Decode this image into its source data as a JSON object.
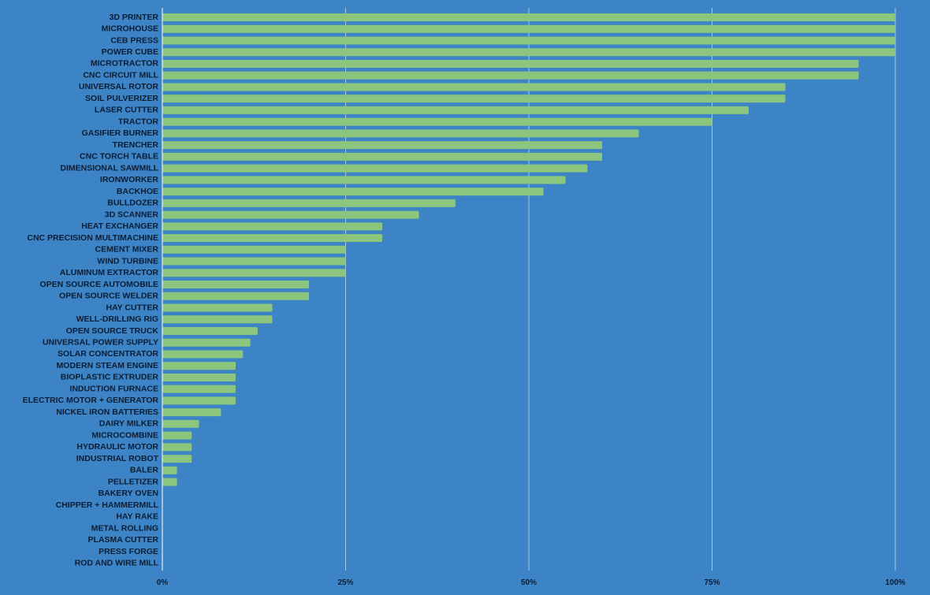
{
  "colors": {
    "background": "#3d84c6",
    "bar": "#8cc57e",
    "grid": "#b9d4ee",
    "text": "#0b1d33"
  },
  "chart_data": {
    "type": "bar",
    "orientation": "horizontal",
    "title": "",
    "xlabel": "",
    "ylabel": "",
    "xlim": [
      0,
      100
    ],
    "x_ticks": [
      "0%",
      "25%",
      "50%",
      "75%",
      "100%"
    ],
    "x_tick_values": [
      0,
      25,
      50,
      75,
      100
    ],
    "grid": true,
    "categories": [
      "3D PRINTER",
      "MICROHOUSE",
      "CEB PRESS",
      "POWER CUBE",
      "MICROTRACTOR",
      "CNC CIRCUIT MILL",
      "UNIVERSAL ROTOR",
      "SOIL PULVERIZER",
      "LASER CUTTER",
      "TRACTOR",
      "GASIFIER BURNER",
      "TRENCHER",
      "CNC TORCH TABLE",
      "DIMENSIONAL SAWMILL",
      "IRONWORKER",
      "BACKHOE",
      "BULLDOZER",
      "3D SCANNER",
      "HEAT EXCHANGER",
      "CNC PRECISION MULTIMACHINE",
      "CEMENT MIXER",
      "WIND TURBINE",
      "ALUMINUM EXTRACTOR",
      "OPEN SOURCE AUTOMOBILE",
      "OPEN SOURCE WELDER",
      "HAY CUTTER",
      "WELL-DRILLING RIG",
      "OPEN SOURCE TRUCK",
      "UNIVERSAL POWER SUPPLY",
      "SOLAR CONCENTRATOR",
      "MODERN STEAM ENGINE",
      "BIOPLASTIC EXTRUDER",
      "INDUCTION FURNACE",
      "ELECTRIC MOTOR + GENERATOR",
      "NICKEL IRON BATTERIES",
      "DAIRY MILKER",
      "MICROCOMBINE",
      "HYDRAULIC MOTOR",
      "INDUSTRIAL ROBOT",
      "BALER",
      "PELLETIZER",
      "BAKERY OVEN",
      "CHIPPER + HAMMERMILL",
      "HAY RAKE",
      "METAL ROLLING",
      "PLASMA CUTTER",
      "PRESS FORGE",
      "ROD AND WIRE MILL"
    ],
    "values": [
      100,
      100,
      100,
      100,
      95,
      95,
      85,
      85,
      80,
      75,
      65,
      60,
      60,
      58,
      55,
      52,
      40,
      35,
      30,
      30,
      25,
      25,
      25,
      20,
      20,
      15,
      15,
      13,
      12,
      11,
      10,
      10,
      10,
      10,
      8,
      5,
      4,
      4,
      4,
      2,
      2,
      0,
      0,
      0,
      0,
      0,
      0,
      0
    ]
  }
}
